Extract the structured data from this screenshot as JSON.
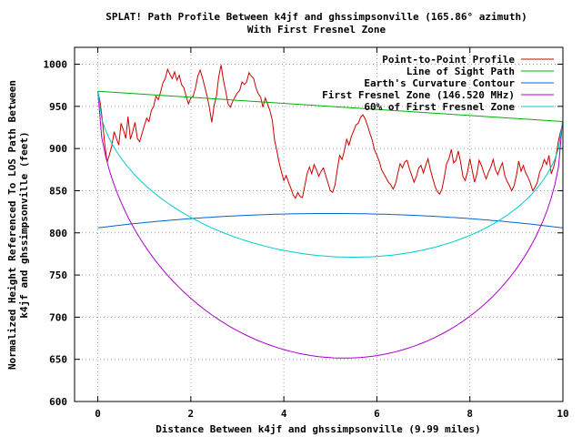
{
  "chart_data": {
    "type": "line",
    "title": "SPLAT! Path Profile Between k4jf and ghssimpsonville (165.86° azimuth)",
    "subtitle": "With First Fresnel Zone",
    "xlabel": "Distance Between k4jf and ghssimpsonville (9.99 miles)",
    "ylabel_line1": "Normalized Height Referenced To LOS Path Between",
    "ylabel_line2": "k4jf and ghssimpsonville (feet)",
    "xlim": [
      -0.5,
      10
    ],
    "ylim": [
      600,
      1020
    ],
    "x_ticks": [
      0,
      2,
      4,
      6,
      8,
      10
    ],
    "x_tick_labels": [
      "0",
      "2",
      "4",
      "6",
      "8",
      "10"
    ],
    "y_ticks": [
      600,
      650,
      700,
      750,
      800,
      850,
      900,
      950,
      1000
    ],
    "y_tick_labels": [
      "600",
      "650",
      "700",
      "750",
      "800",
      "850",
      "900",
      "950",
      "1000"
    ],
    "grid": true,
    "legend_position": "top-right",
    "series": [
      {
        "name": "Point-to-Point Profile",
        "color": "#cc0000",
        "x": [
          0,
          0.05,
          0.1,
          0.15,
          0.2,
          0.25,
          0.3,
          0.35,
          0.4,
          0.45,
          0.5,
          0.55,
          0.6,
          0.65,
          0.7,
          0.75,
          0.8,
          0.85,
          0.9,
          0.95,
          1.0,
          1.05,
          1.1,
          1.15,
          1.2,
          1.25,
          1.3,
          1.35,
          1.4,
          1.45,
          1.5,
          1.55,
          1.6,
          1.65,
          1.7,
          1.75,
          1.8,
          1.85,
          1.9,
          1.95,
          2.0,
          2.05,
          2.1,
          2.15,
          2.2,
          2.25,
          2.3,
          2.35,
          2.4,
          2.45,
          2.5,
          2.55,
          2.6,
          2.65,
          2.7,
          2.75,
          2.8,
          2.85,
          2.9,
          2.95,
          3.0,
          3.05,
          3.1,
          3.15,
          3.2,
          3.25,
          3.3,
          3.35,
          3.4,
          3.45,
          3.5,
          3.55,
          3.6,
          3.65,
          3.7,
          3.75,
          3.8,
          3.85,
          3.9,
          3.95,
          4.0,
          4.05,
          4.1,
          4.15,
          4.2,
          4.25,
          4.3,
          4.35,
          4.4,
          4.45,
          4.5,
          4.55,
          4.6,
          4.65,
          4.7,
          4.75,
          4.8,
          4.85,
          4.9,
          4.95,
          5.0,
          5.05,
          5.1,
          5.15,
          5.2,
          5.25,
          5.3,
          5.35,
          5.4,
          5.45,
          5.5,
          5.55,
          5.6,
          5.65,
          5.7,
          5.75,
          5.8,
          5.85,
          5.9,
          5.95,
          6.0,
          6.05,
          6.1,
          6.15,
          6.2,
          6.25,
          6.3,
          6.35,
          6.4,
          6.45,
          6.5,
          6.55,
          6.6,
          6.65,
          6.7,
          6.75,
          6.8,
          6.85,
          6.9,
          6.95,
          7.0,
          7.05,
          7.1,
          7.15,
          7.2,
          7.25,
          7.3,
          7.35,
          7.4,
          7.45,
          7.5,
          7.55,
          7.6,
          7.65,
          7.7,
          7.75,
          7.8,
          7.85,
          7.9,
          7.95,
          8.0,
          8.05,
          8.1,
          8.15,
          8.2,
          8.25,
          8.3,
          8.35,
          8.4,
          8.45,
          8.5,
          8.55,
          8.6,
          8.65,
          8.7,
          8.75,
          8.8,
          8.85,
          8.9,
          8.95,
          9.0,
          9.05,
          9.1,
          9.15,
          9.2,
          9.25,
          9.3,
          9.35,
          9.4,
          9.45,
          9.5,
          9.55,
          9.6,
          9.65,
          9.7,
          9.75,
          9.8,
          9.85,
          9.9,
          9.95,
          9.99
        ],
        "y": [
          968,
          955,
          932,
          905,
          884,
          893,
          903,
          920,
          912,
          904,
          930,
          922,
          912,
          938,
          911,
          920,
          931,
          912,
          908,
          918,
          927,
          936,
          932,
          945,
          950,
          962,
          958,
          967,
          978,
          983,
          994,
          988,
          983,
          991,
          981,
          987,
          976,
          972,
          962,
          953,
          960,
          962,
          972,
          986,
          993,
          984,
          973,
          962,
          948,
          931,
          951,
          962,
          985,
          999,
          981,
          968,
          953,
          949,
          956,
          961,
          966,
          969,
          979,
          976,
          979,
          990,
          986,
          983,
          972,
          965,
          961,
          949,
          960,
          953,
          945,
          934,
          910,
          897,
          883,
          872,
          862,
          868,
          860,
          853,
          845,
          841,
          848,
          843,
          842,
          856,
          870,
          878,
          870,
          881,
          875,
          867,
          873,
          877,
          868,
          859,
          850,
          848,
          857,
          876,
          892,
          887,
          897,
          911,
          904,
          914,
          921,
          928,
          930,
          937,
          940,
          935,
          927,
          918,
          910,
          898,
          892,
          885,
          875,
          870,
          865,
          860,
          857,
          852,
          858,
          870,
          882,
          877,
          884,
          886,
          876,
          868,
          860,
          867,
          877,
          880,
          871,
          880,
          888,
          875,
          865,
          855,
          849,
          846,
          852,
          866,
          882,
          888,
          899,
          883,
          886,
          897,
          884,
          867,
          862,
          873,
          888,
          874,
          860,
          870,
          886,
          880,
          871,
          864,
          872,
          878,
          887,
          875,
          869,
          877,
          883,
          868,
          861,
          856,
          850,
          856,
          868,
          885,
          873,
          880,
          871,
          866,
          859,
          850,
          854,
          860,
          872,
          878,
          887,
          881,
          892,
          870,
          878,
          890,
          908,
          920,
          928
        ]
      },
      {
        "name": "Line of Sight Path",
        "color": "#00b000",
        "kind": "los",
        "start": 968,
        "end": 932
      },
      {
        "name": "Earth's Curvature Contour",
        "color": "#0066cc",
        "kind": "curvature",
        "edge": 806,
        "mid": 823
      },
      {
        "name": "First Fresnel Zone (146.520 MHz)",
        "color": "#aa00cc",
        "kind": "fresnel",
        "scale": 1.0,
        "min": 652
      },
      {
        "name": "60% of First Fresnel Zone",
        "color": "#00cccc",
        "kind": "fresnel",
        "scale": 0.6,
        "min": 772
      }
    ]
  }
}
